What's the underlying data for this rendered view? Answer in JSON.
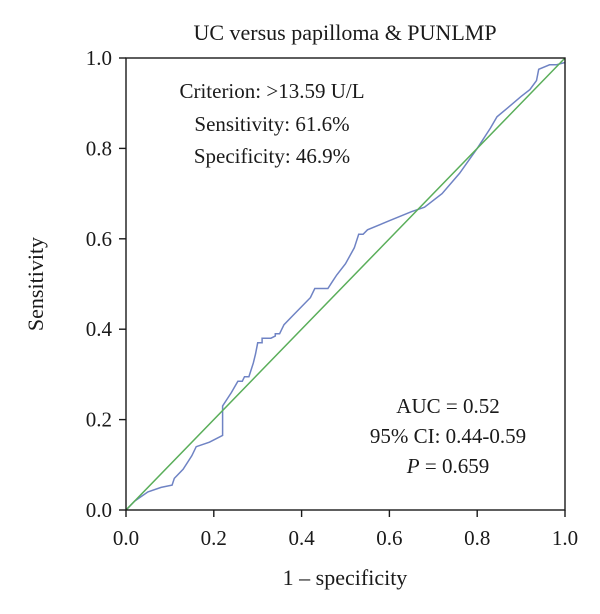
{
  "chart_data": {
    "type": "line",
    "title": "UC versus papilloma & PUNLMP",
    "xlabel": "1 – specificity",
    "ylabel": "Sensitivity",
    "xlim": [
      0,
      1
    ],
    "ylim": [
      0,
      1
    ],
    "x_ticks": [
      "0.0",
      "0.2",
      "0.4",
      "0.6",
      "0.8",
      "1.0"
    ],
    "y_ticks": [
      "0.0",
      "0.2",
      "0.4",
      "0.6",
      "0.8",
      "1.0"
    ],
    "grid": false,
    "annotations": {
      "criterion": "Criterion: >13.59 U/L",
      "sensitivity": "Sensitivity: 61.6%",
      "specificity": "Specificity: 46.9%",
      "auc": "AUC = 0.52",
      "ci": "95% CI: 0.44-0.59",
      "p_label": "P",
      "p_value": " = 0.659"
    },
    "series": [
      {
        "color": "#6f83c4",
        "x": [
          0,
          0.02,
          0.05,
          0.08,
          0.105,
          0.11,
          0.13,
          0.15,
          0.16,
          0.19,
          0.22,
          0.22,
          0.24,
          0.255,
          0.26,
          0.265,
          0.27,
          0.28,
          0.29,
          0.295,
          0.3,
          0.31,
          0.31,
          0.33,
          0.34,
          0.34,
          0.35,
          0.355,
          0.36,
          0.38,
          0.4,
          0.42,
          0.43,
          0.44,
          0.46,
          0.47,
          0.48,
          0.5,
          0.52,
          0.53,
          0.54,
          0.55,
          0.6,
          0.65,
          0.68,
          0.72,
          0.76,
          0.8,
          0.83,
          0.845,
          0.87,
          0.9,
          0.92,
          0.935,
          0.94,
          0.965,
          0.98,
          1.0
        ],
        "y": [
          0,
          0.02,
          0.04,
          0.05,
          0.055,
          0.07,
          0.09,
          0.12,
          0.14,
          0.15,
          0.165,
          0.23,
          0.26,
          0.285,
          0.285,
          0.285,
          0.295,
          0.295,
          0.325,
          0.345,
          0.37,
          0.37,
          0.38,
          0.38,
          0.385,
          0.39,
          0.39,
          0.4,
          0.41,
          0.43,
          0.45,
          0.47,
          0.49,
          0.49,
          0.49,
          0.505,
          0.52,
          0.545,
          0.58,
          0.61,
          0.61,
          0.62,
          0.64,
          0.66,
          0.67,
          0.7,
          0.745,
          0.8,
          0.845,
          0.87,
          0.89,
          0.915,
          0.93,
          0.95,
          0.975,
          0.985,
          0.985,
          0.99
        ]
      },
      {
        "color": "#5aae5a",
        "x": [
          0,
          1
        ],
        "y": [
          0,
          1
        ]
      }
    ]
  }
}
